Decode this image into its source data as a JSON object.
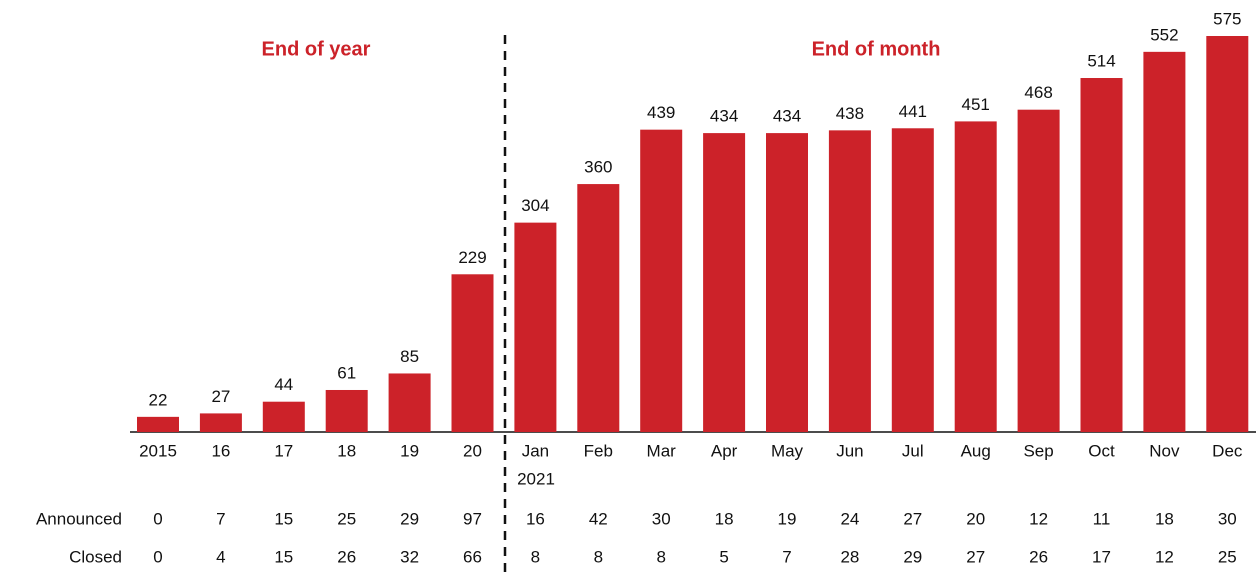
{
  "chart_data": {
    "type": "bar",
    "annotations": [
      "End of year",
      "End of month"
    ],
    "categories": [
      "2015",
      "16",
      "17",
      "18",
      "19",
      "20",
      "Jan",
      "Feb",
      "Mar",
      "Apr",
      "May",
      "Jun",
      "Jul",
      "Aug",
      "Sep",
      "Oct",
      "Nov",
      "Dec"
    ],
    "category_sublabel": "2021",
    "values": [
      22,
      27,
      44,
      61,
      85,
      229,
      304,
      360,
      439,
      434,
      434,
      438,
      441,
      451,
      468,
      514,
      552,
      575
    ],
    "color": "#cc2229",
    "table": [
      {
        "name": "Announced",
        "values": [
          0,
          7,
          15,
          25,
          29,
          97,
          16,
          42,
          30,
          18,
          19,
          24,
          27,
          20,
          12,
          11,
          18,
          30
        ]
      },
      {
        "name": "Closed",
        "values": [
          0,
          4,
          15,
          26,
          32,
          66,
          8,
          8,
          8,
          5,
          7,
          28,
          29,
          27,
          26,
          17,
          12,
          25
        ]
      }
    ]
  }
}
